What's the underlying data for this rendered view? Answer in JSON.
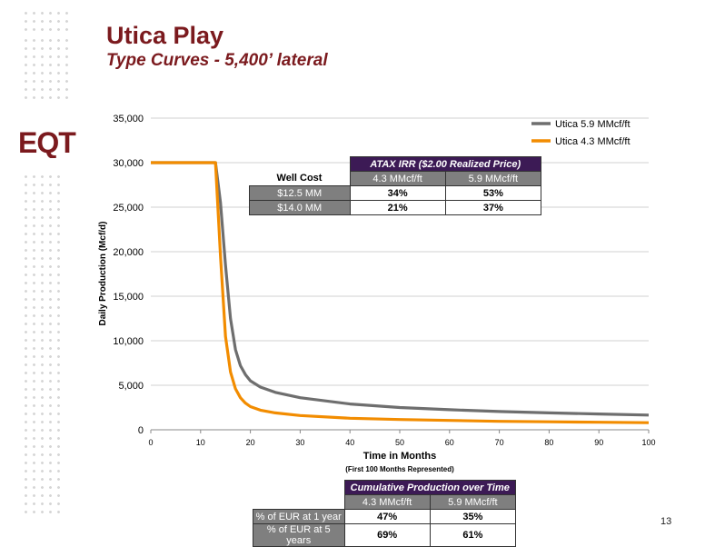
{
  "header": {
    "title": "Utica Play",
    "subtitle": "Type Curves - 5,400’ lateral",
    "logo_text": "EQT",
    "page_number": "13"
  },
  "colors": {
    "brand": "#7b1a1e",
    "series1": "#6e6e6e",
    "series2": "#f28c00",
    "table_header": "#3c1a55",
    "table_gray": "#7f7f7f"
  },
  "chart_data": {
    "type": "line",
    "xlabel": "Time in Months",
    "xlabel_note": "(First 100 Months Represented)",
    "ylabel": "Daily Production (Mcf/d)",
    "xlim": [
      0,
      100
    ],
    "ylim": [
      0,
      35000
    ],
    "x_ticks": [
      "0",
      "10",
      "20",
      "30",
      "40",
      "50",
      "60",
      "70",
      "80",
      "90",
      "100"
    ],
    "y_ticks": [
      "0",
      "5,000",
      "10,000",
      "15,000",
      "20,000",
      "25,000",
      "30,000",
      "35,000"
    ],
    "grid": "horizontal",
    "legend_position": "top-right",
    "series": [
      {
        "name": "Utica 5.9 MMcf/ft",
        "color": "#6e6e6e",
        "x": [
          0,
          12,
          13,
          14,
          15,
          16,
          17,
          18,
          19,
          20,
          22,
          25,
          30,
          40,
          50,
          60,
          70,
          80,
          90,
          100
        ],
        "y": [
          30000,
          30000,
          30000,
          25500,
          18500,
          12500,
          9000,
          7200,
          6200,
          5500,
          4800,
          4200,
          3600,
          2900,
          2500,
          2250,
          2050,
          1900,
          1780,
          1650
        ]
      },
      {
        "name": "Utica 4.3 MMcf/ft",
        "color": "#f28c00",
        "x": [
          0,
          12,
          13,
          14,
          15,
          16,
          17,
          18,
          19,
          20,
          22,
          25,
          30,
          40,
          50,
          60,
          70,
          80,
          90,
          100
        ],
        "y": [
          30000,
          30000,
          30000,
          19500,
          10500,
          6500,
          4600,
          3600,
          3000,
          2600,
          2200,
          1900,
          1600,
          1300,
          1150,
          1050,
          950,
          900,
          850,
          800
        ]
      }
    ]
  },
  "irr_table": {
    "title": "ATAX IRR ($2.00 Realized Price)",
    "row_header_label": "Well Cost",
    "columns": [
      "4.3 MMcf/ft",
      "5.9 MMcf/ft"
    ],
    "rows": [
      {
        "label": "$12.5 MM",
        "values": [
          "34%",
          "53%"
        ]
      },
      {
        "label": "$14.0 MM",
        "values": [
          "21%",
          "37%"
        ]
      }
    ]
  },
  "cumulative_table": {
    "title": "Cumulative Production over Time",
    "columns": [
      "4.3 MMcf/ft",
      "5.9 MMcf/ft"
    ],
    "rows": [
      {
        "label": "% of EUR at 1 year",
        "values": [
          "47%",
          "35%"
        ]
      },
      {
        "label": "% of EUR at 5 years",
        "values": [
          "69%",
          "61%"
        ]
      }
    ]
  }
}
